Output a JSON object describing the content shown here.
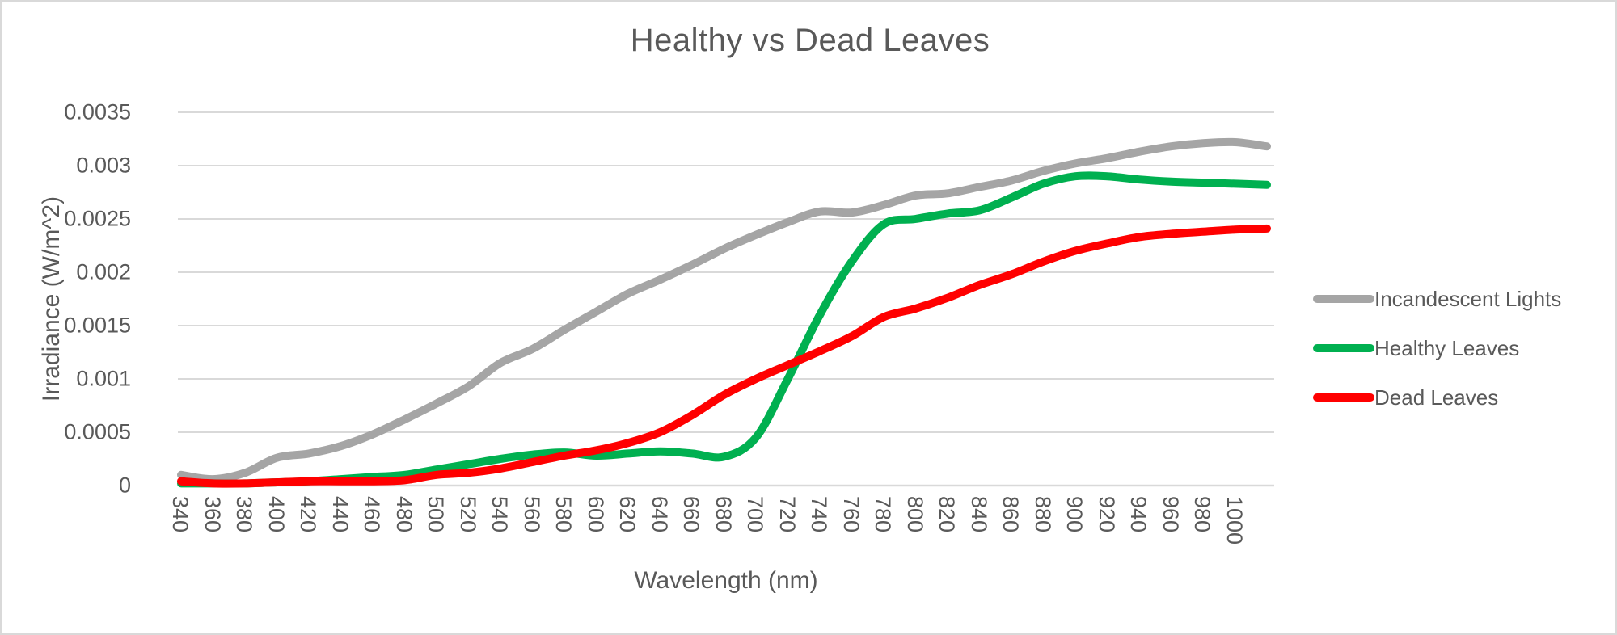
{
  "chart_data": {
    "type": "line",
    "title": "Healthy vs Dead Leaves",
    "xlabel": "Wavelength (nm)",
    "ylabel": "Irradiance (W/m^2)",
    "x": [
      340,
      360,
      380,
      400,
      420,
      440,
      460,
      480,
      500,
      520,
      540,
      560,
      580,
      600,
      620,
      640,
      660,
      680,
      700,
      720,
      740,
      760,
      780,
      800,
      820,
      840,
      860,
      880,
      900,
      920,
      940,
      960,
      980,
      1000,
      1020
    ],
    "x_tick_labels": [
      "340",
      "360",
      "380",
      "400",
      "420",
      "440",
      "460",
      "480",
      "500",
      "520",
      "540",
      "560",
      "580",
      "600",
      "620",
      "640",
      "660",
      "680",
      "700",
      "720",
      "740",
      "760",
      "780",
      "800",
      "820",
      "840",
      "860",
      "880",
      "900",
      "920",
      "940",
      "960",
      "980",
      "1000"
    ],
    "y_ticks": [
      0,
      0.0005,
      0.001,
      0.0015,
      0.002,
      0.0025,
      0.003,
      0.0035
    ],
    "y_tick_labels": [
      "0",
      "0.0005",
      "0.001",
      "0.0015",
      "0.002",
      "0.0025",
      "0.003",
      "0.0035"
    ],
    "ylim": [
      0,
      0.0035
    ],
    "grid": "horizontal",
    "legend_position": "right",
    "series": [
      {
        "name": "Incandescent Lights",
        "color": "#A5A5A5",
        "values": [
          0.0001,
          6e-05,
          0.00012,
          0.00026,
          0.0003,
          0.00037,
          0.00048,
          0.00062,
          0.00077,
          0.00093,
          0.00115,
          0.00128,
          0.00146,
          0.00163,
          0.0018,
          0.00193,
          0.00207,
          0.00222,
          0.00235,
          0.00247,
          0.00257,
          0.00256,
          0.00263,
          0.00272,
          0.00274,
          0.0028,
          0.00286,
          0.00295,
          0.00302,
          0.00307,
          0.00313,
          0.00318,
          0.00321,
          0.00322,
          0.00318
        ]
      },
      {
        "name": "Healthy Leaves",
        "color": "#00B050",
        "values": [
          2e-05,
          2e-05,
          2e-05,
          3e-05,
          4e-05,
          6e-05,
          8e-05,
          0.0001,
          0.00015,
          0.0002,
          0.00025,
          0.00029,
          0.00031,
          0.00028,
          0.0003,
          0.00032,
          0.0003,
          0.00027,
          0.00045,
          0.001,
          0.0016,
          0.0021,
          0.00245,
          0.0025,
          0.00255,
          0.00258,
          0.0027,
          0.00283,
          0.0029,
          0.0029,
          0.00287,
          0.00285,
          0.00284,
          0.00283,
          0.00282
        ]
      },
      {
        "name": "Dead Leaves",
        "color": "#FF0000",
        "values": [
          4e-05,
          2e-05,
          2e-05,
          3e-05,
          4e-05,
          4e-05,
          4e-05,
          5e-05,
          0.0001,
          0.00012,
          0.00016,
          0.00022,
          0.00028,
          0.00033,
          0.0004,
          0.0005,
          0.00066,
          0.00085,
          0.001,
          0.00113,
          0.00126,
          0.0014,
          0.00158,
          0.00166,
          0.00176,
          0.00188,
          0.00198,
          0.0021,
          0.0022,
          0.00227,
          0.00233,
          0.00236,
          0.00238,
          0.0024,
          0.00241
        ]
      }
    ],
    "colors": {
      "text": "#595959",
      "gridline": "#D9D9D9"
    }
  }
}
